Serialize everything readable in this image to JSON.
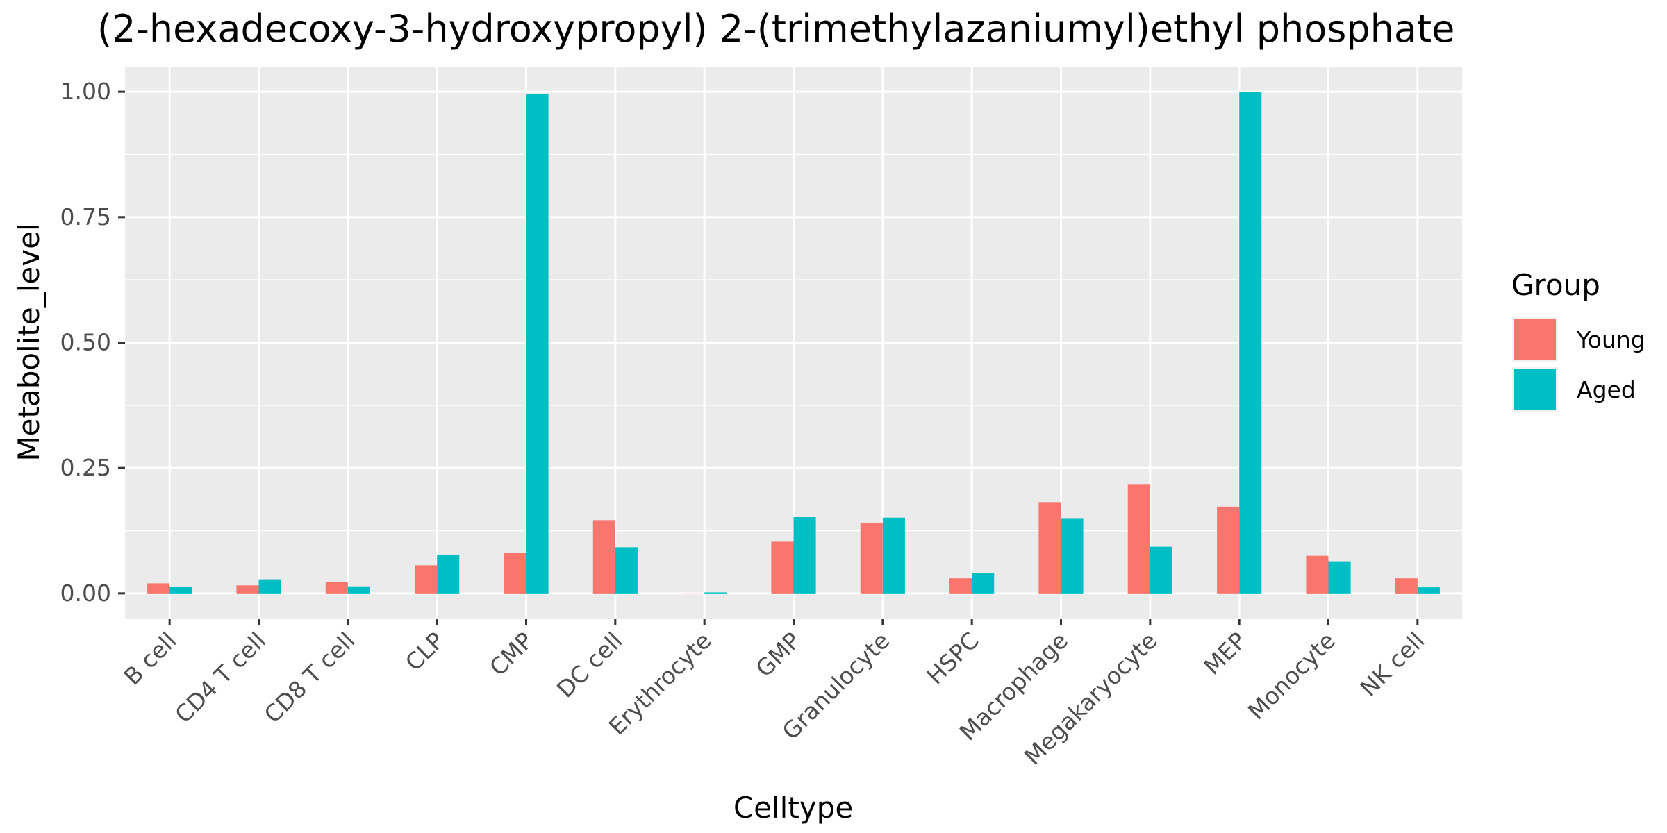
{
  "chart_data": {
    "type": "bar",
    "title": "(2-hexadecoxy-3-hydroxypropyl) 2-(trimethylazaniumyl)ethyl phosphate",
    "xlabel": "Celltype",
    "ylabel": "Metabolite_level",
    "ylim": [
      -0.05,
      1.05
    ],
    "yticks": [
      {
        "value": 0.0,
        "label": "0.00"
      },
      {
        "value": 0.25,
        "label": "0.25"
      },
      {
        "value": 0.5,
        "label": "0.50"
      },
      {
        "value": 0.75,
        "label": "0.75"
      },
      {
        "value": 1.0,
        "label": "1.00"
      }
    ],
    "categories": [
      "B cell",
      "CD4 T cell",
      "CD8 T cell",
      "CLP",
      "CMP",
      "DC cell",
      "Erythrocyte",
      "GMP",
      "Granulocyte",
      "HSPC",
      "Macrophage",
      "Megakaryocyte",
      "MEP",
      "Monocyte",
      "NK cell"
    ],
    "series": [
      {
        "name": "Young",
        "color": "#F8766D",
        "values": [
          0.02,
          0.016,
          0.022,
          0.056,
          0.081,
          0.146,
          0.0,
          0.103,
          0.141,
          0.03,
          0.182,
          0.218,
          0.173,
          0.075,
          0.03
        ]
      },
      {
        "name": "Aged",
        "color": "#00BFC4",
        "values": [
          0.013,
          0.028,
          0.014,
          0.077,
          0.995,
          0.092,
          0.002,
          0.152,
          0.151,
          0.04,
          0.15,
          0.093,
          1.0,
          0.064,
          0.012
        ]
      }
    ],
    "grid": true,
    "legend": {
      "title": "Group",
      "position": "right"
    },
    "panel_background": "#EBEBEB",
    "grid_color": "#FFFFFF"
  }
}
